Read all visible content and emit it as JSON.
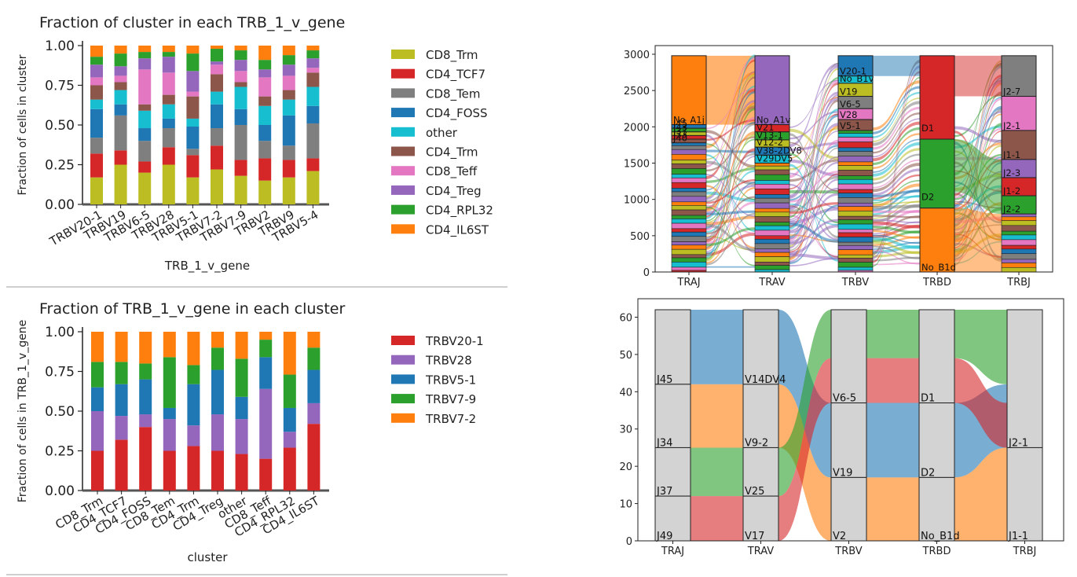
{
  "colors": {
    "CD8_Trm": "#bcbd22",
    "CD4_TCF7": "#d62728",
    "CD8_Tem": "#7f7f7f",
    "CD4_FOSS": "#1f77b4",
    "other": "#17becf",
    "CD4_Trm": "#8c564b",
    "CD8_Teff": "#e377c2",
    "CD4_Treg": "#9467bd",
    "CD4_RPL32": "#2ca02c",
    "CD4_IL6ST": "#ff7f0e",
    "TRBV20-1": "#d62728",
    "TRBV28": "#9467bd",
    "TRBV5-1": "#1f77b4",
    "TRBV7-9": "#2ca02c",
    "TRBV7-2": "#ff7f0e",
    "sankey_blue": "#1f77b4",
    "sankey_orange": "#ff7f0e",
    "sankey_green": "#2ca02c",
    "sankey_red": "#d62728",
    "node_gray": "#d3d3d3"
  },
  "chart_data": [
    {
      "type": "bar",
      "stacked": true,
      "title": "Fraction of cluster in each TRB_1_v_gene",
      "xlabel": "TRB_1_v_gene",
      "ylabel": "Fraction of cells in cluster",
      "ylim": [
        0,
        1.0
      ],
      "yticks": [
        "0.00",
        "0.25",
        "0.50",
        "0.75",
        "1.00"
      ],
      "categories": [
        "TRBV20-1",
        "TRBV19",
        "TRBV6-5",
        "TRBV28",
        "TRBV5-1",
        "TRBV7-2",
        "TRBV7-9",
        "TRBV2",
        "TRBV9",
        "TRBV5-4"
      ],
      "legend": [
        "CD8_Trm",
        "CD4_TCF7",
        "CD8_Tem",
        "CD4_FOSS",
        "other",
        "CD4_Trm",
        "CD8_Teff",
        "CD4_Treg",
        "CD4_RPL32",
        "CD4_IL6ST"
      ],
      "series": [
        {
          "name": "CD8_Trm",
          "values": [
            0.17,
            0.25,
            0.2,
            0.25,
            0.17,
            0.22,
            0.18,
            0.15,
            0.17,
            0.21
          ]
        },
        {
          "name": "CD4_TCF7",
          "values": [
            0.15,
            0.09,
            0.07,
            0.11,
            0.14,
            0.15,
            0.1,
            0.14,
            0.11,
            0.08
          ]
        },
        {
          "name": "CD8_Tem",
          "values": [
            0.1,
            0.22,
            0.13,
            0.12,
            0.04,
            0.11,
            0.22,
            0.11,
            0.09,
            0.22
          ]
        },
        {
          "name": "CD4_FOSS",
          "values": [
            0.18,
            0.07,
            0.08,
            0.06,
            0.14,
            0.15,
            0.1,
            0.1,
            0.19,
            0.11
          ]
        },
        {
          "name": "other",
          "values": [
            0.06,
            0.09,
            0.11,
            0.09,
            0.05,
            0.08,
            0.14,
            0.12,
            0.1,
            0.12
          ]
        },
        {
          "name": "CD4_Trm",
          "values": [
            0.09,
            0.05,
            0.04,
            0.06,
            0.14,
            0.11,
            0.03,
            0.06,
            0.06,
            0.09
          ]
        },
        {
          "name": "CD8_Teff",
          "values": [
            0.05,
            0.04,
            0.22,
            0.14,
            0.03,
            0.06,
            0.07,
            0.12,
            0.09,
            0.03
          ]
        },
        {
          "name": "CD4_Treg",
          "values": [
            0.08,
            0.06,
            0.07,
            0.1,
            0.13,
            0.02,
            0.07,
            0.05,
            0.07,
            0.06
          ]
        },
        {
          "name": "CD4_RPL32",
          "values": [
            0.05,
            0.08,
            0.04,
            0.03,
            0.11,
            0.08,
            0.06,
            0.06,
            0.06,
            0.05
          ]
        },
        {
          "name": "CD4_IL6ST",
          "values": [
            0.07,
            0.05,
            0.04,
            0.04,
            0.05,
            0.02,
            0.03,
            0.09,
            0.06,
            0.03
          ]
        }
      ]
    },
    {
      "type": "bar",
      "stacked": true,
      "title": "Fraction of TRB_1_v_gene in each cluster",
      "xlabel": "cluster",
      "ylabel": "Fraction of cells in TRB_1_v_gene",
      "ylim": [
        0,
        1.0
      ],
      "yticks": [
        "0.00",
        "0.25",
        "0.50",
        "0.75",
        "1.00"
      ],
      "categories": [
        "CD8_Trm",
        "CD4_TCF7",
        "CD4_FOSS",
        "CD8_Tem",
        "CD4_Trm",
        "CD4_Treg",
        "other",
        "CD8_Teff",
        "CD4_RPL32",
        "CD4_IL6ST"
      ],
      "legend": [
        "TRBV20-1",
        "TRBV28",
        "TRBV5-1",
        "TRBV7-9",
        "TRBV7-2"
      ],
      "series": [
        {
          "name": "TRBV20-1",
          "values": [
            0.25,
            0.32,
            0.4,
            0.25,
            0.28,
            0.25,
            0.23,
            0.2,
            0.27,
            0.42
          ]
        },
        {
          "name": "TRBV28",
          "values": [
            0.25,
            0.15,
            0.08,
            0.2,
            0.13,
            0.23,
            0.22,
            0.44,
            0.1,
            0.13
          ]
        },
        {
          "name": "TRBV5-1",
          "values": [
            0.15,
            0.2,
            0.22,
            0.07,
            0.26,
            0.28,
            0.14,
            0.2,
            0.15,
            0.21
          ]
        },
        {
          "name": "TRBV7-9",
          "values": [
            0.16,
            0.14,
            0.1,
            0.32,
            0.12,
            0.14,
            0.24,
            0.11,
            0.21,
            0.14
          ]
        },
        {
          "name": "TRBV7-2",
          "values": [
            0.19,
            0.19,
            0.2,
            0.16,
            0.21,
            0.1,
            0.17,
            0.05,
            0.27,
            0.1
          ]
        }
      ]
    },
    {
      "type": "sankey",
      "axes": [
        "TRAJ",
        "TRAV",
        "TRBV",
        "TRBD",
        "TRBJ"
      ],
      "ylim": [
        0,
        3000
      ],
      "yticks": [
        "0",
        "500",
        "1000",
        "1500",
        "2000",
        "2500",
        "3000"
      ],
      "columns": [
        {
          "axis": "TRAJ",
          "nodes": [
            {
              "label": "No_A1j",
              "from": 2030,
              "to": 2980
            },
            {
              "label": "J45",
              "from": 1980,
              "to": 2030
            },
            {
              "label": "J43",
              "from": 1930,
              "to": 1980
            },
            {
              "label": "J37",
              "from": 1880,
              "to": 1930
            },
            {
              "label": "J33",
              "from": 1830,
              "to": 1880
            },
            {
              "label": "J40",
              "from": 1780,
              "to": 1830
            }
          ]
        },
        {
          "axis": "TRAV",
          "nodes": [
            {
              "label": "No_A1v",
              "from": 2030,
              "to": 2980
            },
            {
              "label": "V21",
              "from": 1930,
              "to": 2030
            },
            {
              "label": "V13-1",
              "from": 1820,
              "to": 1930
            },
            {
              "label": "V12-2",
              "from": 1720,
              "to": 1820
            },
            {
              "label": "V38-2DV8",
              "from": 1610,
              "to": 1720
            },
            {
              "label": "V29DV5",
              "from": 1500,
              "to": 1610
            }
          ]
        },
        {
          "axis": "TRBV",
          "nodes": [
            {
              "label": "V20-1",
              "from": 2700,
              "to": 2980
            },
            {
              "label": "No_B1v",
              "from": 2600,
              "to": 2700
            },
            {
              "label": "V19",
              "from": 2420,
              "to": 2600
            },
            {
              "label": "V6-5",
              "from": 2250,
              "to": 2420
            },
            {
              "label": "V28",
              "from": 2100,
              "to": 2250
            },
            {
              "label": "V5-1",
              "from": 1950,
              "to": 2100
            }
          ]
        },
        {
          "axis": "TRBD",
          "nodes": [
            {
              "label": "D1",
              "from": 1830,
              "to": 2980
            },
            {
              "label": "D2",
              "from": 880,
              "to": 1830
            },
            {
              "label": "No_B1d",
              "from": 0,
              "to": 880
            }
          ]
        },
        {
          "axis": "TRBJ",
          "nodes": [
            {
              "label": "J2-7",
              "from": 2420,
              "to": 2980
            },
            {
              "label": "J2-1",
              "from": 1950,
              "to": 2420
            },
            {
              "label": "J1-1",
              "from": 1550,
              "to": 1950
            },
            {
              "label": "J2-3",
              "from": 1300,
              "to": 1550
            },
            {
              "label": "J1-2",
              "from": 1050,
              "to": 1300
            },
            {
              "label": "J2-2",
              "from": 800,
              "to": 1050
            }
          ]
        }
      ]
    },
    {
      "type": "sankey",
      "axes": [
        "TRAJ",
        "TRAV",
        "TRBV",
        "TRBD",
        "TRBJ"
      ],
      "ylim": [
        0,
        62
      ],
      "yticks": [
        "0",
        "10",
        "20",
        "30",
        "40",
        "50",
        "60"
      ],
      "columns": [
        {
          "axis": "TRAJ",
          "nodes": [
            {
              "label": "J45",
              "from": 42,
              "to": 62
            },
            {
              "label": "J34",
              "from": 25,
              "to": 42
            },
            {
              "label": "J37",
              "from": 12,
              "to": 25
            },
            {
              "label": "J49",
              "from": 0,
              "to": 12
            }
          ]
        },
        {
          "axis": "TRAV",
          "nodes": [
            {
              "label": "V14DV4",
              "from": 42,
              "to": 62
            },
            {
              "label": "V9-2",
              "from": 25,
              "to": 42
            },
            {
              "label": "V25",
              "from": 12,
              "to": 25
            },
            {
              "label": "V17",
              "from": 0,
              "to": 12
            }
          ]
        },
        {
          "axis": "TRBV",
          "nodes": [
            {
              "label": "V6-5",
              "from": 37,
              "to": 62
            },
            {
              "label": "V19",
              "from": 17,
              "to": 37
            },
            {
              "label": "V2",
              "from": 0,
              "to": 17
            }
          ]
        },
        {
          "axis": "TRBD",
          "nodes": [
            {
              "label": "D1",
              "from": 37,
              "to": 62
            },
            {
              "label": "D2",
              "from": 17,
              "to": 37
            },
            {
              "label": "No_B1d",
              "from": 0,
              "to": 17
            }
          ]
        },
        {
          "axis": "TRBJ",
          "nodes": [
            {
              "label": "J2-1",
              "from": 25,
              "to": 62
            },
            {
              "label": "J1-1",
              "from": 0,
              "to": 25
            }
          ]
        }
      ],
      "flows": [
        {
          "color": "sankey_blue",
          "segments": [
            [
              42,
              62
            ],
            [
              42,
              62
            ],
            [
              17,
              37
            ],
            [
              17,
              37
            ],
            [
              25,
              42
            ]
          ]
        },
        {
          "color": "sankey_orange",
          "segments": [
            [
              25,
              42
            ],
            [
              25,
              42
            ],
            [
              0,
              17
            ],
            [
              0,
              17
            ],
            [
              0,
              25
            ]
          ]
        },
        {
          "color": "sankey_green",
          "segments": [
            [
              12,
              25
            ],
            [
              12,
              25
            ],
            [
              49,
              62
            ],
            [
              49,
              62
            ],
            [
              42,
              62
            ]
          ]
        },
        {
          "color": "sankey_red",
          "segments": [
            [
              0,
              12
            ],
            [
              0,
              12
            ],
            [
              37,
              49
            ],
            [
              37,
              49
            ],
            [
              25,
              37
            ]
          ]
        }
      ]
    }
  ]
}
